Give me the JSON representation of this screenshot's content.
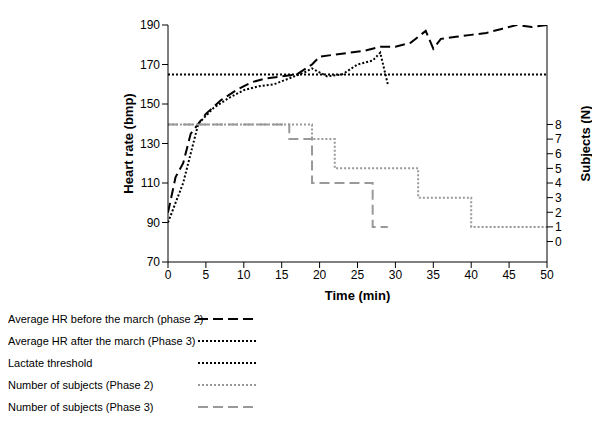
{
  "chart_data": {
    "type": "line",
    "x_label": "Time (min)",
    "y_label": "Heart rate (bmp)",
    "y2_label": "Subjects (N)",
    "xlim": [
      0,
      50
    ],
    "xticks": [
      0,
      5,
      10,
      15,
      20,
      25,
      30,
      35,
      40,
      45,
      50
    ],
    "ylim": [
      70,
      190
    ],
    "yticks": [
      70,
      90,
      110,
      130,
      150,
      170,
      190
    ],
    "y2lim": [
      -1.4,
      14.8
    ],
    "y2ticks": [
      0,
      1,
      2,
      3,
      4,
      5,
      6,
      7,
      8
    ],
    "grid": false,
    "legend": "bottom-left",
    "series": [
      {
        "name": "Average HR before the march (phase 2)",
        "color": "#000000",
        "line_style": "dashed",
        "type": "line",
        "x": [
          0,
          1,
          2,
          3,
          5,
          7,
          9,
          11,
          13,
          15,
          17,
          19,
          20,
          22,
          24,
          26,
          28,
          30,
          32,
          34,
          35,
          36,
          38,
          40,
          42,
          44,
          46,
          48,
          50
        ],
        "values": [
          95,
          113,
          120,
          135,
          145,
          152,
          157,
          161,
          163,
          164,
          165,
          170,
          174,
          175,
          176,
          177,
          179,
          179,
          181,
          187,
          178,
          183,
          184,
          185,
          186,
          188,
          190,
          189,
          190
        ]
      },
      {
        "name": "Average HR after the march (Phase 3)",
        "color": "#000000",
        "line_style": "dotted",
        "type": "line",
        "x": [
          0,
          2,
          3,
          4,
          6,
          8,
          10,
          12,
          14,
          16,
          18,
          19,
          21,
          23,
          25,
          27,
          28,
          29
        ],
        "values": [
          90,
          110,
          125,
          140,
          148,
          153,
          157,
          159,
          160,
          163,
          166,
          168,
          164,
          165,
          170,
          172,
          176,
          160
        ]
      },
      {
        "name": "Lactate threshold",
        "color": "#000000",
        "line_style": "dotted",
        "type": "line",
        "x": [
          0,
          50
        ],
        "values": [
          165,
          165
        ]
      },
      {
        "name": "Number of subjects (Phase 2)",
        "color": "#999999",
        "line_style": "dotted",
        "type": "step",
        "axis": "y2",
        "x": [
          0,
          19,
          22,
          33,
          40,
          50
        ],
        "values": [
          8,
          7,
          5,
          3,
          1,
          1
        ]
      },
      {
        "name": "Number of subjects (Phase 3)",
        "color": "#999999",
        "line_style": "dashed",
        "type": "step",
        "axis": "y2",
        "x": [
          0,
          16,
          19,
          27,
          29
        ],
        "values": [
          8,
          7,
          4,
          1,
          1
        ]
      }
    ]
  }
}
